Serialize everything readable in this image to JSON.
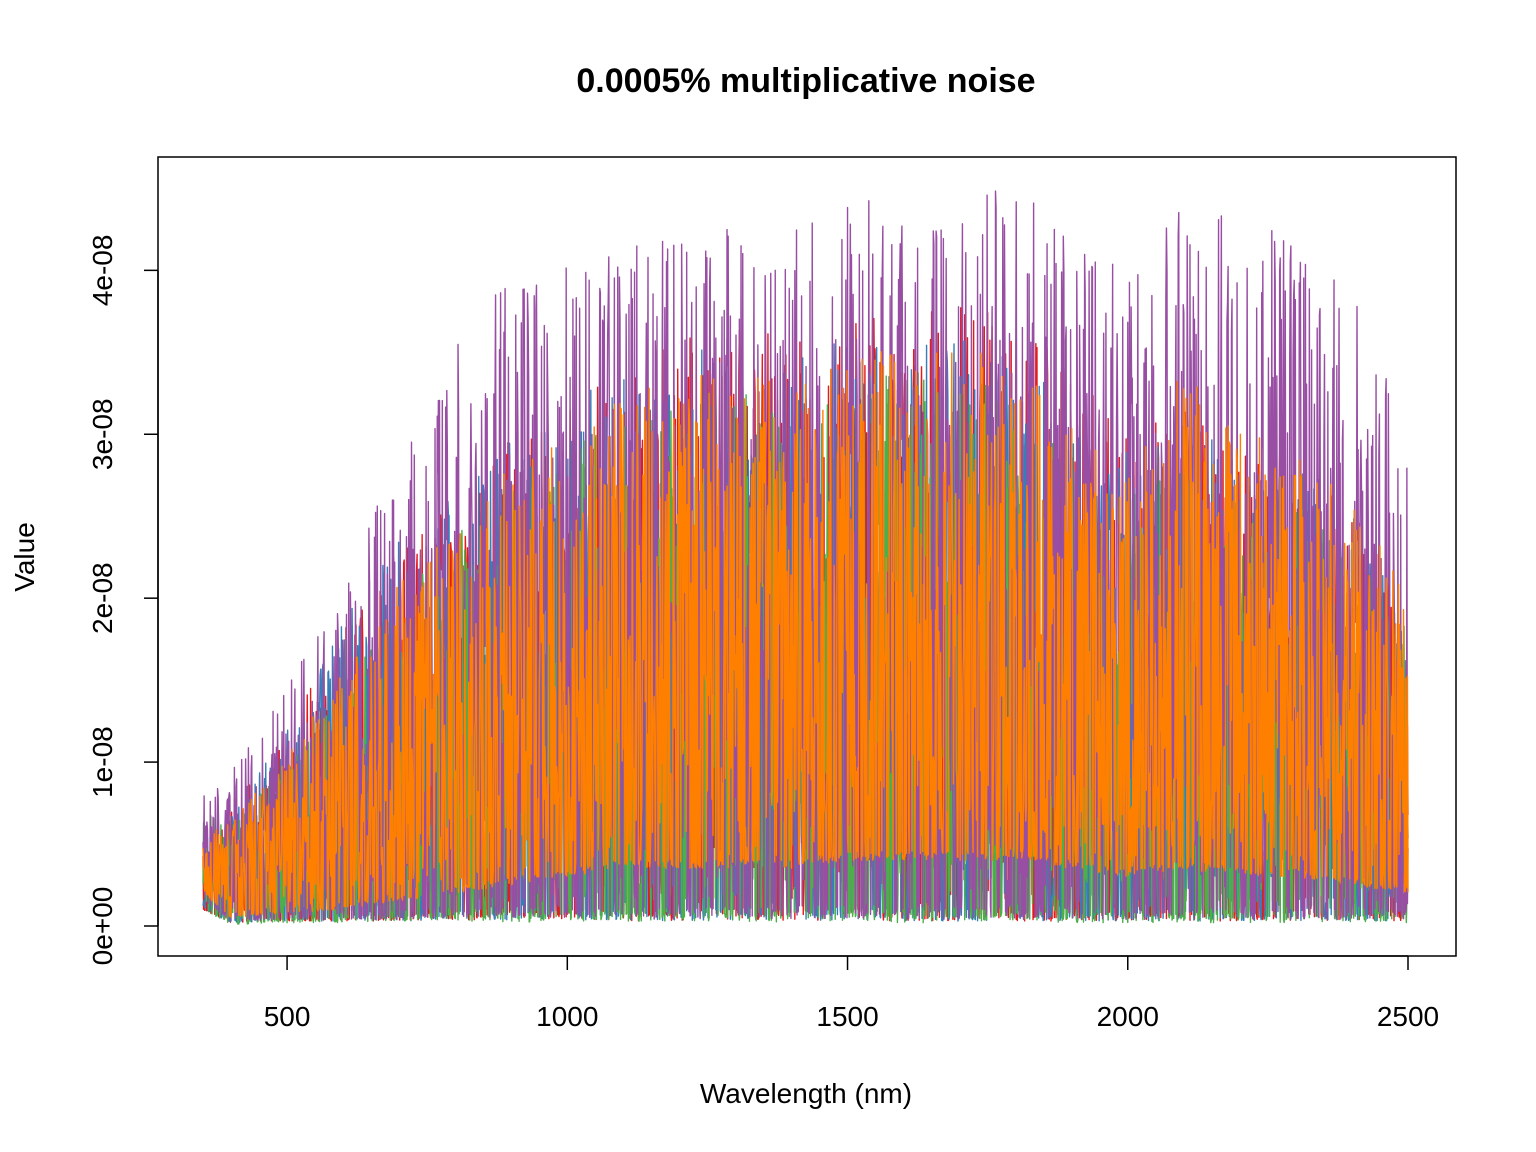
{
  "chart_data": {
    "type": "line",
    "title": "0.0005% multiplicative noise",
    "xlabel": "Wavelength (nm)",
    "ylabel": "Value",
    "xlim": [
      350,
      2500
    ],
    "ylim": [
      0,
      4.6e-08
    ],
    "x_ticks": [
      500,
      1000,
      1500,
      2000,
      2500
    ],
    "x_tick_labels": [
      "500",
      "1000",
      "1500",
      "2000",
      "2500"
    ],
    "y_ticks": [
      0,
      1e-08,
      2e-08,
      3e-08,
      4e-08
    ],
    "y_tick_labels": [
      "0e+00",
      "1e-08",
      "2e-08",
      "3e-08",
      "4e-08"
    ],
    "grid": false,
    "legend": "none",
    "series": [
      {
        "color": "#E41A1C",
        "envelope": {
          "x": [
            350,
            400,
            500,
            600,
            700,
            800,
            900,
            1000,
            1100,
            1200,
            1300,
            1400,
            1500,
            1600,
            1700,
            1800,
            1900,
            2000,
            2100,
            2200,
            2300,
            2400,
            2500
          ],
          "upper": [
            6e-09,
            7.5e-09,
            1.2e-08,
            1.8e-08,
            2.3e-08,
            2.7e-08,
            3e-08,
            3.2e-08,
            3.4e-08,
            3.6e-08,
            3.7e-08,
            3.6e-08,
            3.7e-08,
            3.8e-08,
            3.8e-08,
            3.7e-08,
            3.4e-08,
            3e-08,
            3.2e-08,
            3e-08,
            2.9e-08,
            2.6e-08,
            2.1e-08
          ],
          "lower": [
            1e-09,
            2e-10,
            3e-10,
            3e-10,
            3e-10,
            4e-10,
            3e-10,
            4e-10,
            3e-10,
            3e-10,
            4e-10,
            3e-10,
            4e-10,
            3e-10,
            3e-10,
            3e-10,
            3e-10,
            3e-10,
            3e-10,
            3e-10,
            3e-10,
            3e-10,
            3e-10
          ]
        }
      },
      {
        "color": "#377EB8",
        "envelope": {
          "x": [
            350,
            400,
            500,
            600,
            700,
            800,
            900,
            1000,
            1100,
            1200,
            1300,
            1400,
            1500,
            1600,
            1700,
            1800,
            1900,
            2000,
            2100,
            2200,
            2300,
            2400,
            2500
          ],
          "upper": [
            6e-09,
            7e-09,
            1.2e-08,
            1.9e-08,
            2.4e-08,
            2.7e-08,
            3e-08,
            3.2e-08,
            3.4e-08,
            3.5e-08,
            3.6e-08,
            3.5e-08,
            3.6e-08,
            3.6e-08,
            3.6e-08,
            3.5e-08,
            3.3e-08,
            2.9e-08,
            3.1e-08,
            2.9e-08,
            2.8e-08,
            2.5e-08,
            2e-08
          ],
          "lower": [
            1e-09,
            2e-10,
            3e-10,
            3e-10,
            3e-10,
            4e-10,
            3e-10,
            4e-10,
            3e-10,
            3e-10,
            4e-10,
            3e-10,
            4e-10,
            3e-10,
            3e-10,
            3e-10,
            3e-10,
            3e-10,
            3e-10,
            3e-10,
            3e-10,
            3e-10,
            3e-10
          ]
        }
      },
      {
        "color": "#4DAF4A",
        "envelope": {
          "x": [
            350,
            400,
            500,
            600,
            700,
            800,
            900,
            1000,
            1100,
            1200,
            1300,
            1400,
            1500,
            1600,
            1700,
            1800,
            1900,
            2000,
            2100,
            2200,
            2300,
            2400,
            2500
          ],
          "upper": [
            7e-09,
            6e-09,
            1e-08,
            1.5e-08,
            2e-08,
            2.4e-08,
            2.7e-08,
            2.9e-08,
            3.1e-08,
            3.2e-08,
            3.3e-08,
            3.2e-08,
            3.3e-08,
            3.4e-08,
            3.4e-08,
            3.3e-08,
            3e-08,
            2.7e-08,
            2.9e-08,
            2.7e-08,
            2.6e-08,
            2.3e-08,
            1.9e-08
          ],
          "lower": [
            1e-09,
            1e-10,
            2e-10,
            2e-10,
            3e-10,
            3e-10,
            2e-10,
            3e-10,
            3e-10,
            2e-10,
            3e-10,
            2e-10,
            3e-10,
            2e-10,
            2e-10,
            3e-10,
            2e-10,
            2e-10,
            2e-10,
            2e-10,
            2e-10,
            2e-10,
            2e-10
          ]
        }
      },
      {
        "color": "#984EA3",
        "envelope": {
          "x": [
            350,
            400,
            500,
            600,
            700,
            800,
            900,
            1000,
            1100,
            1200,
            1300,
            1400,
            1500,
            1600,
            1700,
            1800,
            1900,
            2000,
            2100,
            2200,
            2300,
            2400,
            2500
          ],
          "upper": [
            8.5e-09,
            9.5e-09,
            1.45e-08,
            2.1e-08,
            2.9e-08,
            3.6e-08,
            3.95e-08,
            4.05e-08,
            4.15e-08,
            4.2e-08,
            4.3e-08,
            4.3e-08,
            4.4e-08,
            4.5e-08,
            4.5e-08,
            4.55e-08,
            4.2e-08,
            4e-08,
            4.45e-08,
            4.3e-08,
            4.2e-08,
            3.9e-08,
            3e-08
          ],
          "lower": [
            1.5e-09,
            3e-10,
            4e-10,
            4e-10,
            4e-10,
            5e-10,
            4e-10,
            5e-10,
            4e-10,
            4e-10,
            5e-10,
            4e-10,
            5e-10,
            4e-10,
            4e-10,
            4e-10,
            4e-10,
            4e-10,
            4e-10,
            4e-10,
            4e-10,
            4e-10,
            4e-10
          ]
        }
      },
      {
        "color": "#FF7F00",
        "envelope": {
          "x": [
            350,
            400,
            500,
            600,
            700,
            800,
            900,
            1000,
            1100,
            1200,
            1300,
            1400,
            1500,
            1600,
            1700,
            1800,
            1900,
            2000,
            2100,
            2200,
            2300,
            2400,
            2500
          ],
          "upper": [
            5.5e-09,
            6.5e-09,
            1.05e-08,
            1.55e-08,
            2.1e-08,
            2.5e-08,
            2.8e-08,
            3e-08,
            3.25e-08,
            3.35e-08,
            3.4e-08,
            3.3e-08,
            3.45e-08,
            3.55e-08,
            3.55e-08,
            3.45e-08,
            3.05e-08,
            2.75e-08,
            3.4e-08,
            3.1e-08,
            2.9e-08,
            2.6e-08,
            2.1e-08
          ],
          "lower": [
            2e-09,
            5e-10,
            8e-10,
            1e-09,
            1.5e-09,
            2e-09,
            2.5e-09,
            3e-09,
            3.5e-09,
            3.5e-09,
            3.5e-09,
            3.5e-09,
            4e-09,
            4e-09,
            4e-09,
            4e-09,
            3.5e-09,
            3e-09,
            3.5e-09,
            3e-09,
            3e-09,
            2.5e-09,
            2e-09
          ]
        }
      }
    ]
  }
}
